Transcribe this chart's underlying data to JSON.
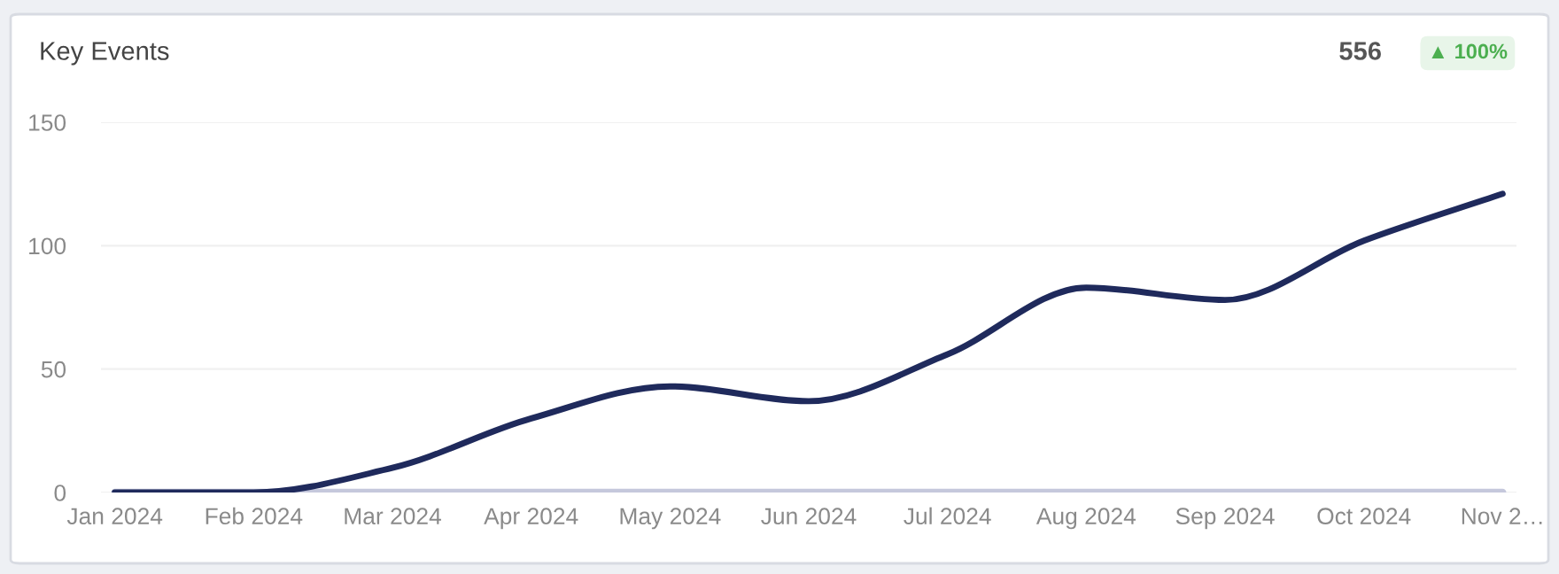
{
  "chart_data": {
    "type": "line",
    "title": "Key Events",
    "categories": [
      "Jan 2024",
      "Feb 2024",
      "Mar 2024",
      "Apr 2024",
      "May 2024",
      "Jun 2024",
      "Jul 2024",
      "Aug 2024",
      "Sep 2024",
      "Oct 2024",
      "Nov 2…"
    ],
    "series": [
      {
        "color": "#c5c8dc",
        "values": [
          0,
          0,
          0,
          0,
          0,
          0,
          0,
          0,
          0,
          0,
          0
        ]
      },
      {
        "color": "#1f2a5c",
        "values": [
          0,
          0,
          10,
          30,
          43,
          37,
          56,
          83,
          78,
          102,
          121
        ]
      }
    ],
    "ylim": [
      0,
      150
    ],
    "yticks": [
      0,
      50,
      100,
      150
    ],
    "grid": "y",
    "marker": "none",
    "line_style": "solid",
    "annotations": [
      "556",
      "▲ 100%"
    ]
  }
}
